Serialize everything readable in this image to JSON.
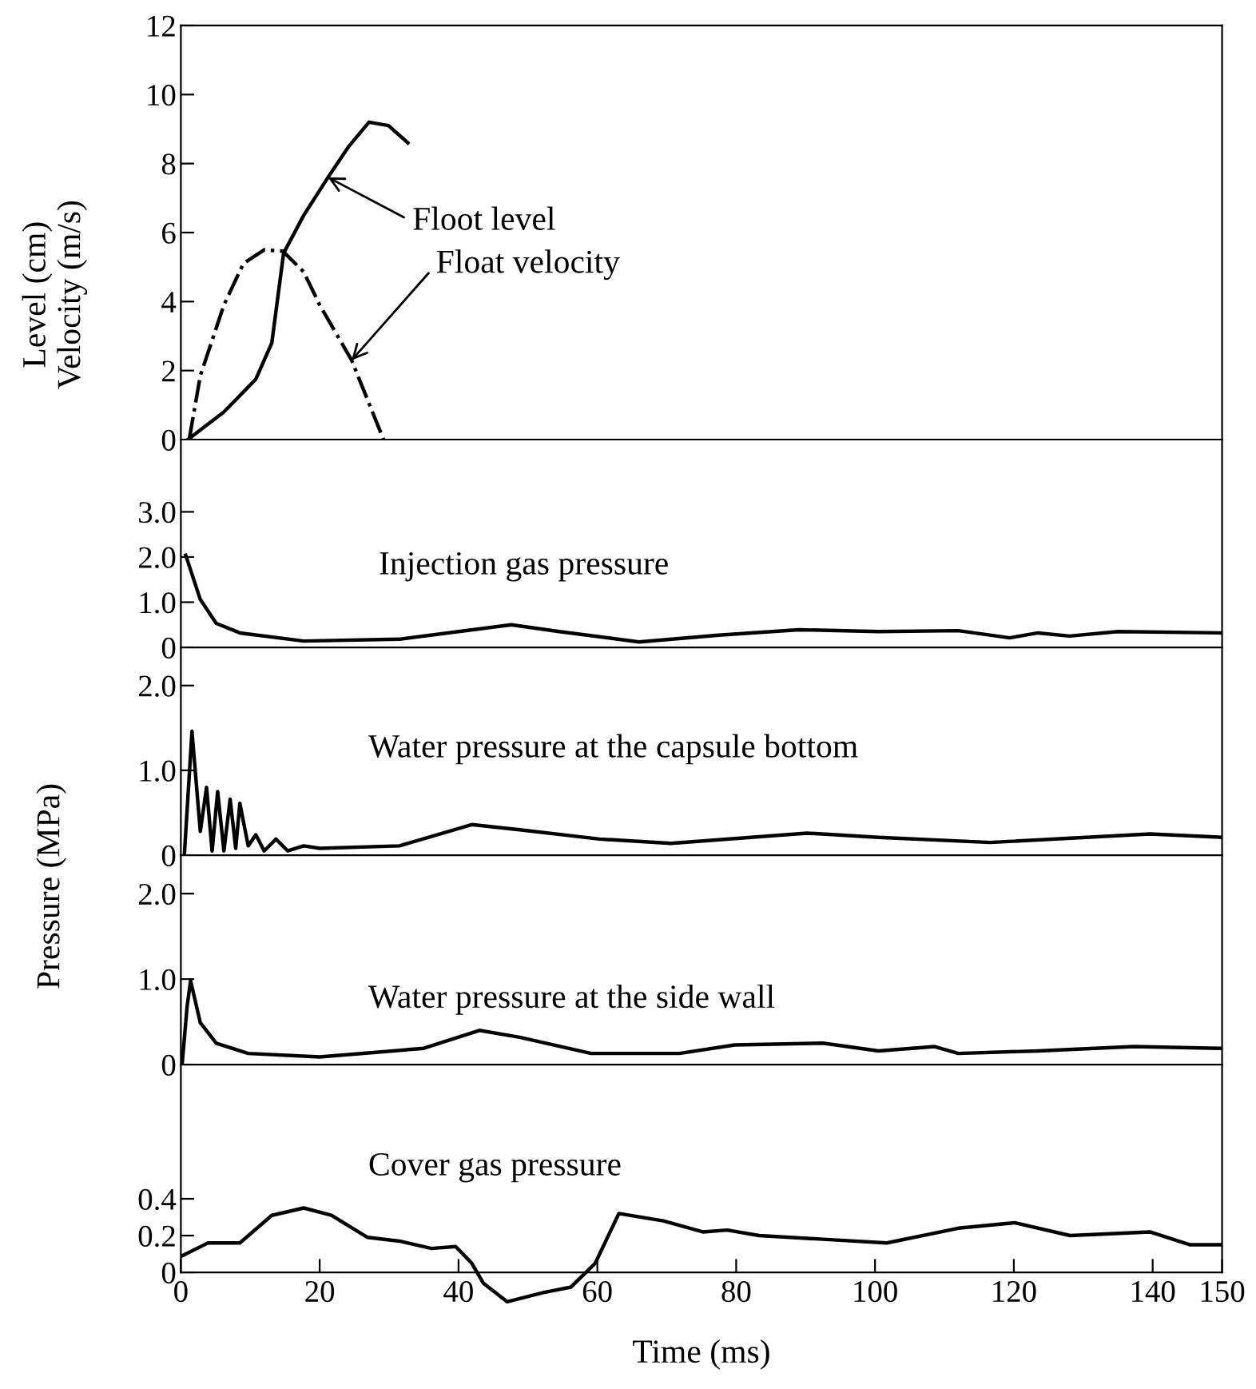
{
  "chart_data": [
    {
      "type": "line",
      "ylabel": "Level (cm)\nVelocity (m/s)",
      "xlim": [
        0,
        150
      ],
      "ylim": [
        0,
        12
      ],
      "yticks": [
        0,
        2,
        4,
        6,
        8,
        10,
        12
      ],
      "tick_labels": "y",
      "series": [
        {
          "color": "#000000",
          "line_style": "solid",
          "x": [
            1,
            6.2,
            10.8,
            13.1,
            14.8,
            17.7,
            21.2,
            24.2,
            27.1,
            29.9,
            32.7
          ],
          "values": [
            0,
            0.8,
            1.75,
            2.8,
            5.4,
            6.5,
            7.6,
            8.5,
            9.2,
            9.1,
            8.6
          ]
        },
        {
          "color": "#000000",
          "line_style": "dashdot",
          "x": [
            1.2,
            2.8,
            6.2,
            9.0,
            12.0,
            14.7,
            17.7,
            20.0,
            24.6,
            29.2
          ],
          "values": [
            0,
            1.85,
            3.9,
            5.1,
            5.5,
            5.46,
            4.86,
            3.9,
            2.3,
            0
          ]
        }
      ],
      "annotations": [
        {
          "text": "Floot level",
          "x": 21.2,
          "y": 7.6
        },
        {
          "text": "Float velocity",
          "x": 24.6,
          "y": 2.3
        }
      ]
    },
    {
      "type": "line",
      "title": "Injection gas pressure",
      "xlim": [
        0,
        150
      ],
      "ylim": [
        0,
        4.6
      ],
      "yticks": [
        0,
        {
          "value": 1,
          "label": "1.0"
        },
        {
          "value": 2,
          "label": "2.0"
        },
        {
          "value": 3,
          "label": "3.0"
        }
      ],
      "tick_labels": "y",
      "series": [
        {
          "color": "#000000",
          "x": [
            0.7,
            2.8,
            5.1,
            8.5,
            17.7,
            31.5,
            47.6,
            54.5,
            66,
            77.5,
            89,
            100.5,
            112,
            119.4,
            123.5,
            128,
            135,
            150
          ],
          "values": [
            2.04,
            1.06,
            0.53,
            0.32,
            0.14,
            0.18,
            0.5,
            0.35,
            0.12,
            0.27,
            0.39,
            0.35,
            0.37,
            0.21,
            0.32,
            0.25,
            0.35,
            0.32
          ]
        }
      ]
    },
    {
      "type": "line",
      "title": "Water pressure at the capsule bottom",
      "ylabel": "Pressure (MPa)",
      "xlim": [
        0,
        150
      ],
      "ylim": [
        0,
        2.45
      ],
      "yticks": [
        0,
        {
          "value": 1,
          "label": "1.0"
        },
        {
          "value": 2,
          "label": "2.0"
        }
      ],
      "tick_labels": "y",
      "series": [
        {
          "color": "#000000",
          "x": [
            0.5,
            1.6,
            2.8,
            3.7,
            4.5,
            5.3,
            6.2,
            7.1,
            7.9,
            8.5,
            9.7,
            10.8,
            12.0,
            13.7,
            15.4,
            17.7,
            20,
            31.5,
            41.9,
            48.8,
            60.3,
            70.6,
            90.2,
            100.5,
            116.6,
            139.6,
            150
          ],
          "values": [
            0,
            1.46,
            0.28,
            0.8,
            0.05,
            0.75,
            0.05,
            0.66,
            0.08,
            0.61,
            0.11,
            0.24,
            0.05,
            0.19,
            0.05,
            0.11,
            0.08,
            0.11,
            0.36,
            0.3,
            0.19,
            0.14,
            0.26,
            0.21,
            0.15,
            0.25,
            0.21
          ]
        }
      ]
    },
    {
      "type": "line",
      "title": "Water pressure at the side wall",
      "xlim": [
        0,
        150
      ],
      "ylim": [
        0,
        2.45
      ],
      "yticks": [
        0,
        {
          "value": 1,
          "label": "1.0"
        },
        {
          "value": 2,
          "label": "2.0"
        }
      ],
      "tick_labels": "y",
      "series": [
        {
          "color": "#000000",
          "x": [
            0.2,
            0.9,
            1.4,
            2.8,
            5.1,
            9.7,
            20,
            35,
            43,
            48.8,
            59.1,
            71.8,
            79.8,
            92.5,
            100.5,
            108.6,
            112,
            123.5,
            137.3,
            150
          ],
          "values": [
            0.02,
            0.68,
            0.98,
            0.49,
            0.25,
            0.13,
            0.09,
            0.19,
            0.4,
            0.32,
            0.13,
            0.13,
            0.23,
            0.25,
            0.16,
            0.21,
            0.13,
            0.16,
            0.21,
            0.19
          ]
        }
      ]
    },
    {
      "type": "line",
      "title": "Cover gas pressure",
      "xlabel": "Time (ms)",
      "xlim": [
        0,
        150
      ],
      "xticks": [
        0,
        20,
        40,
        60,
        80,
        100,
        120,
        140,
        150
      ],
      "ylim": [
        -0.2,
        1.13
      ],
      "yticks": [
        0,
        0.2,
        0.4
      ],
      "series": [
        {
          "color": "#000000",
          "x": [
            0.2,
            3.9,
            8.5,
            13.1,
            17.7,
            21.7,
            26.9,
            31.5,
            36.1,
            39.6,
            41.9,
            43.6,
            47,
            52.2,
            56.2,
            59.7,
            63.1,
            69.5,
            75.2,
            78.7,
            83.3,
            92.5,
            101.7,
            112,
            120.1,
            128.1,
            139.6,
            145.4,
            150
          ],
          "values": [
            0.09,
            0.16,
            0.16,
            0.31,
            0.35,
            0.31,
            0.19,
            0.17,
            0.13,
            0.14,
            0.05,
            -0.06,
            -0.16,
            -0.11,
            -0.08,
            0.05,
            0.32,
            0.28,
            0.22,
            0.23,
            0.2,
            0.18,
            0.16,
            0.24,
            0.27,
            0.2,
            0.22,
            0.15,
            0.15
          ]
        }
      ]
    }
  ]
}
